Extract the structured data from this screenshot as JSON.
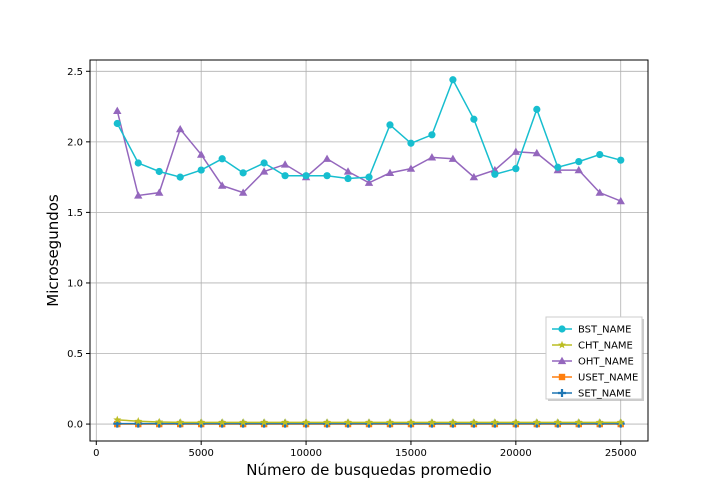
{
  "chart_data": {
    "type": "line",
    "title": "",
    "xlabel": "Número de busquedas promedio",
    "ylabel": "Microsegundos",
    "xlim": [
      -300,
      26300
    ],
    "ylim": [
      -0.12,
      2.58
    ],
    "xticks": [
      0,
      5000,
      10000,
      15000,
      20000,
      25000
    ],
    "xtick_labels": [
      "0",
      "5000",
      "10000",
      "15000",
      "20000",
      "25000"
    ],
    "yticks": [
      0.0,
      0.5,
      1.0,
      1.5,
      2.0,
      2.5
    ],
    "ytick_labels": [
      "0.0",
      "0.5",
      "1.0",
      "1.5",
      "2.0",
      "2.5"
    ],
    "grid": true,
    "legend_position": "lower-right",
    "x": [
      1000,
      2000,
      3000,
      4000,
      5000,
      6000,
      7000,
      8000,
      9000,
      10000,
      11000,
      12000,
      13000,
      14000,
      15000,
      16000,
      17000,
      18000,
      19000,
      20000,
      21000,
      22000,
      23000,
      24000,
      25000
    ],
    "series": [
      {
        "name": "BST_NAME",
        "color": "#17becf",
        "marker": "circle",
        "values": [
          2.13,
          1.85,
          1.79,
          1.75,
          1.8,
          1.88,
          1.78,
          1.85,
          1.76,
          1.76,
          1.76,
          1.74,
          1.75,
          2.12,
          1.99,
          2.05,
          2.44,
          2.16,
          1.77,
          1.81,
          2.23,
          1.82,
          1.86,
          1.91,
          1.87
        ]
      },
      {
        "name": "CHT_NAME",
        "color": "#bcbd22",
        "marker": "star",
        "values": [
          0.03,
          0.02,
          0.015,
          0.012,
          0.012,
          0.012,
          0.012,
          0.012,
          0.012,
          0.012,
          0.012,
          0.012,
          0.012,
          0.012,
          0.012,
          0.012,
          0.012,
          0.012,
          0.012,
          0.012,
          0.012,
          0.012,
          0.012,
          0.012,
          0.012
        ]
      },
      {
        "name": "OHT_NAME",
        "color": "#9467bd",
        "marker": "triangle",
        "values": [
          2.22,
          1.62,
          1.64,
          2.09,
          1.91,
          1.69,
          1.64,
          1.79,
          1.84,
          1.75,
          1.88,
          1.79,
          1.71,
          1.78,
          1.81,
          1.89,
          1.88,
          1.75,
          1.8,
          1.93,
          1.92,
          1.8,
          1.8,
          1.64,
          1.58
        ]
      },
      {
        "name": "USET_NAME",
        "color": "#ff7f0e",
        "marker": "square",
        "values": [
          0.0,
          0.0,
          0.0,
          0.0,
          0.0,
          0.0,
          0.0,
          0.0,
          0.0,
          0.0,
          0.0,
          0.0,
          0.0,
          0.0,
          0.0,
          0.0,
          0.0,
          0.0,
          0.0,
          0.0,
          0.0,
          0.0,
          0.0,
          0.0,
          0.0
        ]
      },
      {
        "name": "SET_NAME",
        "color": "#1f77b4",
        "marker": "plus",
        "values": [
          0.003,
          0.003,
          0.003,
          0.003,
          0.003,
          0.003,
          0.003,
          0.003,
          0.003,
          0.003,
          0.003,
          0.003,
          0.003,
          0.003,
          0.003,
          0.003,
          0.003,
          0.003,
          0.003,
          0.003,
          0.003,
          0.003,
          0.003,
          0.003,
          0.003
        ]
      }
    ]
  }
}
